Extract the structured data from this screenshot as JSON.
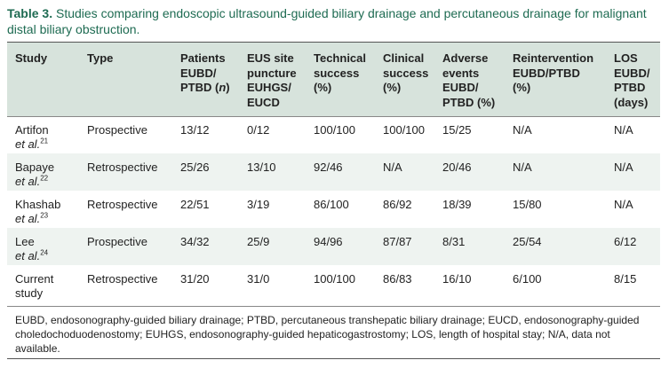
{
  "caption": {
    "label": "Table 3.",
    "text": "Studies comparing endoscopic ultrasound-guided biliary drainage and percutaneous drainage for malignant distal biliary obstruction."
  },
  "table": {
    "headers": [
      "Study",
      "Type",
      "Patients\nEUBD/\nPTBD (n)",
      "EUS site\npuncture\nEUHGS/\nEUCD",
      "Technical\nsuccess\n(%)",
      "Clinical\nsuccess\n(%)",
      "Adverse\nevents\nEUBD/\nPTBD (%)",
      "Reintervention\nEUBD/PTBD\n(%)",
      "LOS\nEUBD/\nPTBD\n(days)"
    ],
    "rows": [
      {
        "study": "Artifon",
        "etal": "et al.",
        "ref": "21",
        "type": "Prospective",
        "patients": "13/12",
        "puncture": "0/12",
        "technical": "100/100",
        "clinical": "100/100",
        "adverse": "15/25",
        "reintervention": "N/A",
        "los": "N/A"
      },
      {
        "study": "Bapaye",
        "etal": "et al.",
        "ref": "22",
        "type": "Retrospective",
        "patients": "25/26",
        "puncture": "13/10",
        "technical": "92/46",
        "clinical": "N/A",
        "adverse": "20/46",
        "reintervention": "N/A",
        "los": "N/A"
      },
      {
        "study": "Khashab",
        "etal": "et al.",
        "ref": "23",
        "type": "Retrospective",
        "patients": "22/51",
        "puncture": "3/19",
        "technical": "86/100",
        "clinical": "86/92",
        "adverse": "18/39",
        "reintervention": "15/80",
        "los": "N/A"
      },
      {
        "study": "Lee",
        "etal": "et al.",
        "ref": "24",
        "type": "Prospective",
        "patients": "34/32",
        "puncture": "25/9",
        "technical": "94/96",
        "clinical": "87/87",
        "adverse": "8/31",
        "reintervention": "25/54",
        "los": "6/12"
      },
      {
        "study": "Current",
        "etal": "study",
        "ref": "",
        "type": "Retrospective",
        "patients": "31/20",
        "puncture": "31/0",
        "technical": "100/100",
        "clinical": "86/83",
        "adverse": "16/10",
        "reintervention": "6/100",
        "los": "8/15"
      }
    ],
    "footnote": "EUBD, endosonography-guided biliary drainage; PTBD, percutaneous transhepatic biliary drainage; EUCD, endosonography-guided choledochoduodenostomy; EUHGS, endosonography-guided hepaticogastrostomy; LOS, length of hospital stay; N/A, data not available."
  },
  "colors": {
    "caption": "#1e6b52",
    "header_bg": "#d7e3dc",
    "alt_row_bg": "#eef3f0"
  }
}
